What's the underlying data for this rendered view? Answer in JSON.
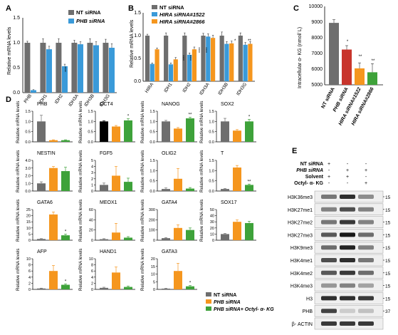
{
  "panels": {
    "A": {
      "letter": "A",
      "ylabel": "Relative mRNA levels",
      "yticks": [
        "0.0",
        "0.5",
        "1.0",
        "1.5"
      ],
      "legend": [
        "NT siRNA",
        "PHB siRNA"
      ],
      "sig": "****"
    },
    "B": {
      "letter": "B",
      "ylabel": "Relative mRNA levels",
      "yticks": [
        "0.0",
        "0.5",
        "1.0",
        "1.5"
      ],
      "legend": [
        "NT siRNA",
        "HIRA siRNA#1522",
        "HIRA siRNA#2866"
      ],
      "sig": "****",
      "sig2": "*",
      "sig3": "**"
    },
    "C": {
      "letter": "C",
      "ylabel": "Intracellular α- KG (nmol/ L)",
      "yticks": [
        "5000",
        "6000",
        "7000",
        "8000",
        "9000",
        "10000"
      ],
      "categories": [
        "NT siRNA",
        "PHB siRNA",
        "HIRA siRNA#1522",
        "HIRA siRNA#2866"
      ],
      "sig": "*",
      "sig2": "**"
    },
    "D": {
      "letter": "D",
      "ylabel": "Relative mRNA levels",
      "legend": [
        "NT siRNA",
        "PHB siRNA",
        "PHB siRNA+ Octyl- α- KG"
      ],
      "sig": "*",
      "sig2": "**"
    },
    "E": {
      "letter": "E",
      "conditions": [
        {
          "label": "NT siRNA",
          "marks": [
            "+",
            "-",
            "-"
          ]
        },
        {
          "label": "PHB siRNA",
          "marks": [
            "-",
            "+",
            "+"
          ]
        },
        {
          "label": "Solvent",
          "marks": [
            "+",
            "+",
            "-"
          ]
        },
        {
          "label": "Octyl- α- KG",
          "marks": [
            "-",
            "-",
            "+"
          ]
        }
      ],
      "blots": [
        {
          "label": "H3K36me3",
          "mw": "15",
          "intensity": [
            0.55,
            0.9,
            0.45
          ]
        },
        {
          "label": "H3K27me1",
          "mw": "15",
          "intensity": [
            0.5,
            0.75,
            0.5
          ]
        },
        {
          "label": "H3K27me2",
          "mw": "15",
          "intensity": [
            0.55,
            0.85,
            0.5
          ]
        },
        {
          "label": "H3K27me3",
          "mw": "15",
          "intensity": [
            0.7,
            1.0,
            0.6
          ]
        },
        {
          "label": "H3K9me3",
          "mw": "15",
          "intensity": [
            0.6,
            0.95,
            0.5
          ]
        },
        {
          "label": "H3K4me1",
          "mw": "15",
          "intensity": [
            0.75,
            0.9,
            0.55
          ]
        },
        {
          "label": "H3K4me2",
          "mw": "15",
          "intensity": [
            0.7,
            0.85,
            0.6
          ]
        },
        {
          "label": "H3K4me3",
          "mw": "15",
          "intensity": [
            0.4,
            0.5,
            0.35
          ]
        },
        {
          "label": "H3",
          "mw": "15",
          "intensity": [
            0.9,
            0.9,
            0.85
          ]
        },
        {
          "label": "PHB",
          "mw": "37",
          "intensity": [
            0.8,
            0.15,
            0.2
          ]
        },
        {
          "label": "β- ACTIN",
          "mw": "",
          "intensity": [
            0.85,
            0.85,
            0.85
          ]
        }
      ]
    }
  },
  "colors": {
    "gray": "#6e6e6e",
    "blue": "#3a9ad9",
    "orange": "#f5961e",
    "green": "#3ea23a",
    "black": "#000000",
    "red": "#c8352c"
  },
  "chart_data": [
    {
      "panel": "A",
      "type": "bar",
      "categories": [
        "PHB",
        "IDH1",
        "IDH2",
        "IDH3A",
        "IDH3B",
        "IDH3G"
      ],
      "series": [
        {
          "name": "NT siRNA",
          "values": [
            1.0,
            1.0,
            1.0,
            1.0,
            1.0,
            1.0
          ],
          "err": [
            0.03,
            0.08,
            0.08,
            0.05,
            0.08,
            0.07
          ]
        },
        {
          "name": "PHB siRNA",
          "values": [
            0.05,
            0.87,
            0.53,
            0.97,
            0.95,
            0.9
          ],
          "err": [
            0.01,
            0.06,
            0.04,
            0.05,
            0.07,
            0.08
          ]
        }
      ],
      "ylim": [
        0,
        1.5
      ]
    },
    {
      "panel": "B",
      "type": "bar",
      "categories": [
        "HIRA",
        "IDH1",
        "IDH2",
        "IDH3A",
        "IDH3B",
        "IDH3G"
      ],
      "series": [
        {
          "name": "NT siRNA",
          "values": [
            1.0,
            1.0,
            1.0,
            1.0,
            1.0,
            1.0
          ],
          "err": [
            0.03,
            0.06,
            0.06,
            0.05,
            0.08,
            0.06
          ]
        },
        {
          "name": "HIRA siRNA#1522",
          "values": [
            0.38,
            0.37,
            0.58,
            0.98,
            0.82,
            0.8
          ],
          "err": [
            0.02,
            0.03,
            0.04,
            0.06,
            0.05,
            0.05
          ]
        },
        {
          "name": "HIRA siRNA#2866",
          "values": [
            0.7,
            0.48,
            0.7,
            0.95,
            0.83,
            0.82
          ],
          "err": [
            0.03,
            0.04,
            0.05,
            0.06,
            0.05,
            0.05
          ]
        }
      ],
      "ylim": [
        0,
        1.5
      ]
    },
    {
      "panel": "C",
      "type": "bar",
      "categories": [
        "NT siRNA",
        "PHB siRNA",
        "HIRA siRNA#1522",
        "HIRA siRNA#2866"
      ],
      "values": [
        8950,
        7250,
        6050,
        5800
      ],
      "err": [
        200,
        250,
        350,
        550
      ],
      "ylim": [
        5000,
        10000
      ]
    },
    {
      "panel": "D",
      "type": "bar",
      "subplots": [
        {
          "gene": "PHB",
          "yticks": [
            "0.0",
            "0.5",
            "1.0",
            "1.5"
          ],
          "ymax": 1.5,
          "values": [
            1.0,
            0.08,
            0.08
          ],
          "err": [
            0.3,
            0.02,
            0.02
          ],
          "first_black": false,
          "sig": ""
        },
        {
          "gene": "OCT4",
          "yticks": [
            "0.0",
            "0.5",
            "1.0",
            "1.5"
          ],
          "ymax": 1.5,
          "values": [
            1.0,
            0.75,
            1.05
          ],
          "err": [
            0.03,
            0.05,
            0.08
          ],
          "first_black": true,
          "sig": "*"
        },
        {
          "gene": "NANOG",
          "yticks": [
            "0.0",
            "0.5",
            "1.0",
            "1.5"
          ],
          "ymax": 1.5,
          "values": [
            1.0,
            0.65,
            1.15
          ],
          "err": [
            0.05,
            0.05,
            0.05
          ],
          "first_black": false,
          "sig": "**"
        },
        {
          "gene": "SOX2",
          "yticks": [
            "0.0",
            "0.5",
            "1.0",
            "1.5"
          ],
          "ymax": 1.5,
          "values": [
            1.0,
            0.55,
            1.0
          ],
          "err": [
            0.15,
            0.05,
            0.1
          ],
          "first_black": false,
          "sig": "*"
        },
        {
          "gene": "NESTIN",
          "yticks": [
            "0.0",
            "1.0",
            "2.0",
            "3.0",
            "4.0"
          ],
          "ymax": 4,
          "values": [
            1.0,
            3.0,
            2.6
          ],
          "err": [
            0.2,
            0.2,
            0.5
          ],
          "first_black": false,
          "sig": ""
        },
        {
          "gene": "FGF5",
          "yticks": [
            "0",
            "1",
            "2",
            "3",
            "4",
            "5"
          ],
          "ymax": 5,
          "values": [
            1.0,
            2.5,
            1.5
          ],
          "err": [
            0.3,
            1.5,
            0.6
          ],
          "first_black": false,
          "sig": ""
        },
        {
          "gene": "OLIG2",
          "yticks": [
            "0.0",
            "0.5",
            "1.0",
            "1.5"
          ],
          "ymax": 1.5,
          "values": [
            0.1,
            0.6,
            0.12
          ],
          "err": [
            0.05,
            0.5,
            0.05
          ],
          "first_black": false,
          "sig": ""
        },
        {
          "gene": "T",
          "yticks": [
            "0.0",
            "0.5",
            "1.0",
            "1.5"
          ],
          "ymax": 1.5,
          "values": [
            0.1,
            1.15,
            0.3
          ],
          "err": [
            0.02,
            0.1,
            0.04
          ],
          "first_black": false,
          "sig": "**"
        },
        {
          "gene": "GATA6",
          "yticks": [
            "0",
            "5",
            "10",
            "15",
            "20",
            "25"
          ],
          "ymax": 25,
          "values": [
            1.0,
            21.0,
            4.0
          ],
          "err": [
            0.3,
            2.0,
            1.0
          ],
          "first_black": false,
          "sig": "*"
        },
        {
          "gene": "MEOX1",
          "yticks": [
            "0",
            "20",
            "40",
            "60"
          ],
          "ymax": 60,
          "values": [
            2,
            15,
            5
          ],
          "err": [
            1,
            18,
            2
          ],
          "first_black": false,
          "sig": ""
        },
        {
          "gene": "GATA4",
          "yticks": [
            "0",
            "100",
            "200",
            "300"
          ],
          "ymax": 300,
          "values": [
            20,
            120,
            100
          ],
          "err": [
            5,
            30,
            20
          ],
          "first_black": false,
          "sig": ""
        },
        {
          "gene": "SOX17",
          "yticks": [
            "0",
            "10",
            "20",
            "30",
            "40",
            "50"
          ],
          "ymax": 50,
          "values": [
            10,
            30,
            28
          ],
          "err": [
            1,
            3,
            3
          ],
          "first_black": false,
          "sig": ""
        },
        {
          "gene": "AFP",
          "yticks": [
            "0",
            "2",
            "4",
            "6",
            "8",
            "10"
          ],
          "ymax": 10,
          "values": [
            0.3,
            6.0,
            1.5
          ],
          "err": [
            0.1,
            1.8,
            0.3
          ],
          "first_black": false,
          "sig": "*"
        },
        {
          "gene": "HAND1",
          "yticks": [
            "0",
            "2",
            "4",
            "6",
            "8",
            "10"
          ],
          "ymax": 10,
          "values": [
            0.5,
            5.5,
            0.8
          ],
          "err": [
            0.2,
            1.8,
            0.3
          ],
          "first_black": false,
          "sig": ""
        },
        {
          "gene": "GATA3",
          "yticks": [
            "0",
            "5",
            "10",
            "15",
            "20"
          ],
          "ymax": 20,
          "values": [
            0.5,
            12.0,
            2.0
          ],
          "err": [
            0.2,
            5.0,
            0.5
          ],
          "first_black": false,
          "sig": "*"
        }
      ]
    }
  ]
}
